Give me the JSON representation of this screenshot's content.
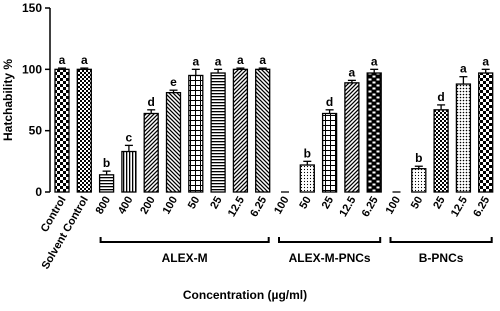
{
  "chart_data": {
    "type": "bar",
    "y_label": "Hatchability %",
    "x_label": "Concentration (µg/ml)",
    "categories": [
      "Control",
      "Solvent Control",
      "800",
      "400",
      "200",
      "100",
      "50",
      "25",
      "12.5",
      "6.25",
      "100",
      "50",
      "25",
      "12.5",
      "6.25",
      "100",
      "50",
      "25",
      "12.5",
      "6.25"
    ],
    "values": [
      100,
      100,
      14,
      33,
      64,
      81,
      95,
      97,
      100,
      100,
      0,
      22,
      64,
      89,
      97,
      0,
      19,
      67,
      88,
      97
    ],
    "errors": [
      1,
      1,
      3,
      5,
      3,
      2,
      5,
      3,
      1,
      1,
      0,
      3,
      3,
      2,
      3,
      0,
      2,
      4,
      6,
      3
    ],
    "letters": [
      "a",
      "a",
      "b",
      "c",
      "d",
      "e",
      "a",
      "a",
      "a",
      "a",
      null,
      "b",
      "d",
      "a",
      "a",
      null,
      "b",
      "d",
      "a",
      "a"
    ],
    "group_labels": [
      "ALEX-M",
      "ALEX-M-PNCs",
      "B-PNCs"
    ],
    "color": "#000000",
    "ylim": [
      0,
      150
    ],
    "yticks": [
      0,
      50,
      100,
      150
    ]
  }
}
